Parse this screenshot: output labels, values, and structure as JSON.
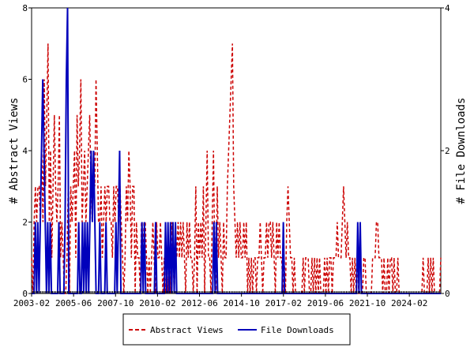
{
  "chart_data": {
    "type": "line",
    "title": "",
    "xlabel": "",
    "ylabel_left": "# Abstract Views",
    "ylabel_right": "# File Downloads",
    "ylim_left": [
      0,
      8
    ],
    "ylim_right": [
      0,
      4
    ],
    "yticks_left": [
      "0",
      "2",
      "4",
      "6",
      "8"
    ],
    "yticks_right": [
      "0",
      "2",
      "4"
    ],
    "xlim": [
      "2003-02",
      "2025-11"
    ],
    "xticks": [
      "2003-02",
      "2005-06",
      "2007-10",
      "2010-02",
      "2012-06",
      "2014-10",
      "2017-02",
      "2019-06",
      "2021-10",
      "2024-02"
    ],
    "grid": false,
    "legend": "bottom",
    "series": [
      {
        "name": "Abstract Views",
        "axis": "left",
        "color": "#cc0000",
        "style": "dashed",
        "values": [
          1,
          0,
          2,
          3,
          2,
          3,
          3,
          2,
          4,
          2,
          6,
          3,
          5,
          7,
          2,
          4,
          1,
          3,
          5,
          3,
          2,
          3,
          5,
          1,
          2,
          1,
          0,
          0,
          1,
          3,
          0,
          3,
          2,
          3,
          4,
          1,
          5,
          3,
          4,
          6,
          2,
          3,
          4,
          2,
          3,
          4,
          5,
          3,
          2,
          4,
          3,
          6,
          4,
          2,
          2,
          3,
          1,
          2,
          3,
          2,
          3,
          3,
          2,
          2,
          1,
          3,
          2,
          3,
          3,
          2,
          3,
          2,
          1,
          0,
          1,
          3,
          2,
          4,
          3,
          1,
          3,
          3,
          0,
          2,
          1,
          1,
          0,
          2,
          1,
          2,
          2,
          1,
          0,
          1,
          0,
          1,
          2,
          1,
          0,
          2,
          1,
          1,
          2,
          1,
          0,
          1,
          0,
          1,
          0,
          1,
          0,
          2,
          1,
          0,
          2,
          1,
          2,
          1,
          2,
          1,
          2,
          1,
          0,
          2,
          1,
          2,
          1,
          1,
          0,
          1,
          3,
          0,
          2,
          1,
          2,
          1,
          3,
          0,
          2,
          4,
          1,
          1,
          0,
          2,
          4,
          1,
          0,
          3,
          1,
          2,
          1,
          0,
          2,
          1,
          1,
          3,
          4,
          5,
          6,
          7,
          3,
          2,
          1,
          2,
          1,
          2,
          1,
          1,
          2,
          1,
          2,
          0,
          1,
          0,
          1,
          0,
          1,
          1,
          0,
          1,
          1,
          2,
          1,
          0,
          1,
          1,
          2,
          1,
          2,
          2,
          1,
          2,
          1,
          0,
          2,
          1,
          2,
          1,
          1,
          0,
          1,
          0,
          2,
          3,
          2,
          1,
          1,
          0,
          1,
          0,
          0,
          0,
          0,
          0,
          0,
          1,
          0,
          1,
          1,
          1,
          0,
          0,
          1,
          0,
          1,
          0,
          1,
          0,
          1,
          0,
          0,
          0,
          1,
          0,
          1,
          0,
          1,
          1,
          0,
          1,
          1,
          1,
          2,
          1,
          1,
          1,
          2,
          3,
          2,
          1,
          2,
          1,
          1,
          0,
          1,
          0,
          1,
          0,
          1,
          0,
          0,
          0,
          0,
          1,
          1,
          0,
          0,
          0,
          0,
          0,
          1,
          1,
          1,
          2,
          2,
          1,
          1,
          1,
          0,
          1,
          0,
          0,
          1,
          0,
          1,
          1,
          0,
          1,
          0,
          0,
          1,
          0,
          0,
          0,
          0,
          0,
          0,
          0,
          0,
          0,
          0,
          0,
          0,
          0,
          0,
          0,
          0,
          0,
          0,
          0,
          1,
          0,
          0,
          0,
          1,
          0,
          1,
          0,
          1,
          0,
          0,
          0,
          0,
          0,
          1
        ]
      },
      {
        "name": "File Downloads",
        "axis": "right",
        "color": "#0000bb",
        "style": "solid",
        "values": [
          0,
          0,
          0,
          1,
          0,
          1,
          0,
          1,
          2,
          3,
          2,
          1,
          0,
          1,
          0,
          1,
          0,
          0,
          0,
          0,
          0,
          0,
          1,
          0,
          0,
          0,
          0,
          1,
          3,
          4,
          0,
          0,
          0,
          0,
          0,
          0,
          0,
          0,
          1,
          0,
          0,
          1,
          0,
          1,
          0,
          1,
          0,
          1,
          2,
          1,
          2,
          1,
          0,
          0,
          0,
          1,
          0,
          0,
          0,
          0,
          1,
          0,
          0,
          0,
          0,
          0,
          0,
          0,
          1,
          0,
          1,
          2,
          0,
          0,
          0,
          0,
          0,
          0,
          0,
          0,
          0,
          0,
          0,
          0,
          0,
          0,
          0,
          0,
          0,
          1,
          0,
          1,
          0,
          0,
          0,
          0,
          0,
          0,
          0,
          0,
          1,
          0,
          0,
          0,
          0,
          0,
          0,
          0,
          1,
          0,
          1,
          0,
          1,
          0,
          1,
          0,
          1,
          0,
          0,
          0,
          0,
          0,
          0,
          0,
          0,
          0,
          0,
          0,
          0,
          0,
          0,
          0,
          0,
          0,
          0,
          0,
          0,
          0,
          0,
          0,
          0,
          0,
          0,
          0,
          0,
          0,
          0,
          1,
          0,
          1,
          0,
          0,
          0,
          0,
          0,
          0,
          0,
          0,
          0,
          0,
          0,
          0,
          0,
          0,
          0,
          0,
          0,
          0,
          0,
          0,
          0,
          0,
          0,
          0,
          0,
          0,
          0,
          0,
          0,
          0,
          0,
          0,
          0,
          0,
          0,
          0,
          0,
          0,
          0,
          0,
          0,
          0,
          0,
          0,
          0,
          0,
          0,
          0,
          0,
          0,
          0,
          0,
          0,
          1,
          0,
          0,
          0,
          0,
          0,
          0,
          0,
          0,
          0,
          0,
          0,
          0,
          0,
          0,
          0,
          0,
          0,
          0,
          0,
          0,
          0,
          0,
          0,
          0,
          0,
          0,
          0,
          0,
          0,
          0,
          0,
          0,
          0,
          0,
          0,
          0,
          0,
          0,
          0,
          0,
          0,
          0,
          0,
          0,
          0,
          0,
          0,
          0,
          0,
          0,
          0,
          0,
          0,
          0,
          0,
          0,
          0,
          0,
          0,
          1,
          0,
          1,
          0,
          0,
          0,
          0,
          0,
          0,
          0,
          0,
          0,
          0,
          0,
          0,
          0,
          0,
          0,
          0,
          0,
          0,
          0,
          0,
          0,
          0,
          0,
          0,
          0,
          0,
          0,
          0,
          0,
          0,
          0,
          0,
          0,
          0,
          0,
          0,
          0,
          0,
          0,
          0,
          0,
          0,
          0,
          0,
          0,
          0,
          0,
          0,
          0,
          0,
          0,
          0,
          0,
          0,
          0,
          0,
          0,
          0,
          0,
          0,
          0,
          0,
          0,
          0,
          0
        ]
      }
    ]
  }
}
